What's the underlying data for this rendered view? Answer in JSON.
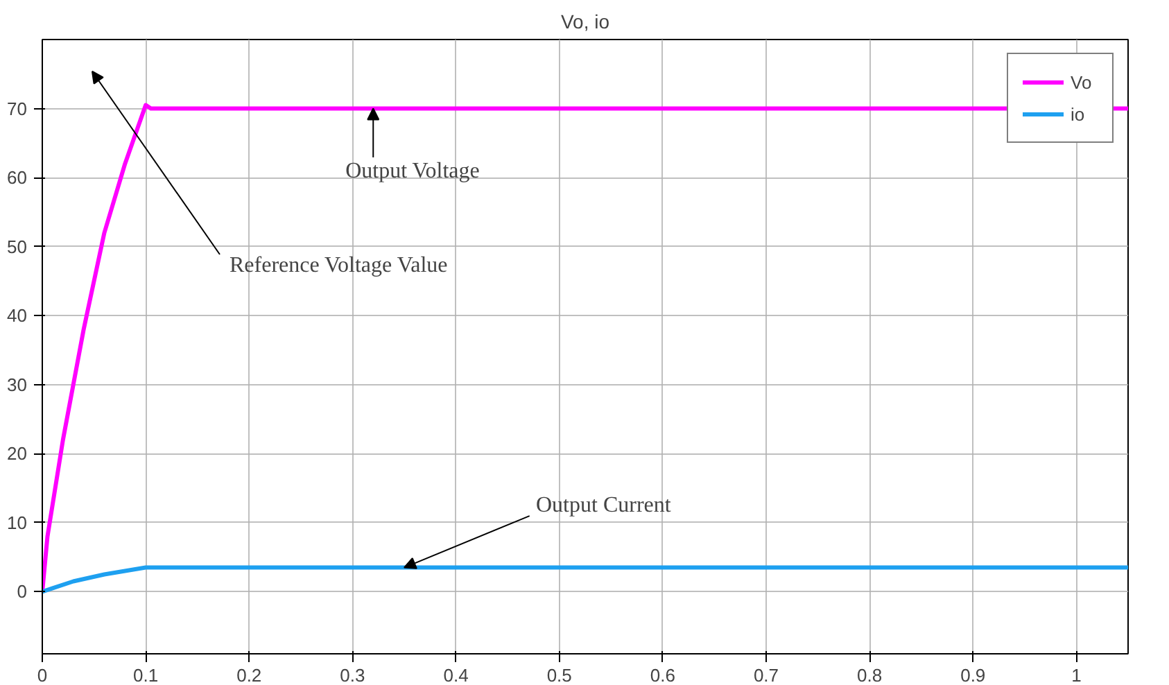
{
  "chart_data": {
    "type": "line",
    "title": "Vo, io",
    "xlim": [
      0,
      1.05
    ],
    "xticks": [
      0,
      0.1,
      0.2,
      0.3,
      0.4,
      0.5,
      0.6,
      0.7,
      0.8,
      0.9,
      1
    ],
    "ylim": [
      -9,
      80
    ],
    "yticks": [
      0,
      10,
      20,
      30,
      40,
      50,
      60,
      70
    ],
    "grid": true,
    "legend": "top right",
    "line_style": "solid",
    "series": [
      {
        "name": "Vo",
        "color": "#ff00ff",
        "x": [
          0,
          0.005,
          0.02,
          0.04,
          0.06,
          0.08,
          0.1,
          0.105,
          1.05
        ],
        "values": [
          0,
          8,
          22,
          38,
          52,
          62,
          70.5,
          70,
          70
        ]
      },
      {
        "name": "io",
        "color": "#1ea0f0",
        "x": [
          0,
          0.01,
          0.03,
          0.06,
          0.1,
          1.05
        ],
        "values": [
          0,
          0.5,
          1.5,
          2.5,
          3.5,
          3.5
        ]
      }
    ],
    "annotations": [
      {
        "text": "Output Voltage",
        "x": 0.32,
        "y": 70
      },
      "Reference Voltage Value",
      {
        "text": "Output Current",
        "x": 0.35,
        "y": 3.5
      }
    ]
  }
}
